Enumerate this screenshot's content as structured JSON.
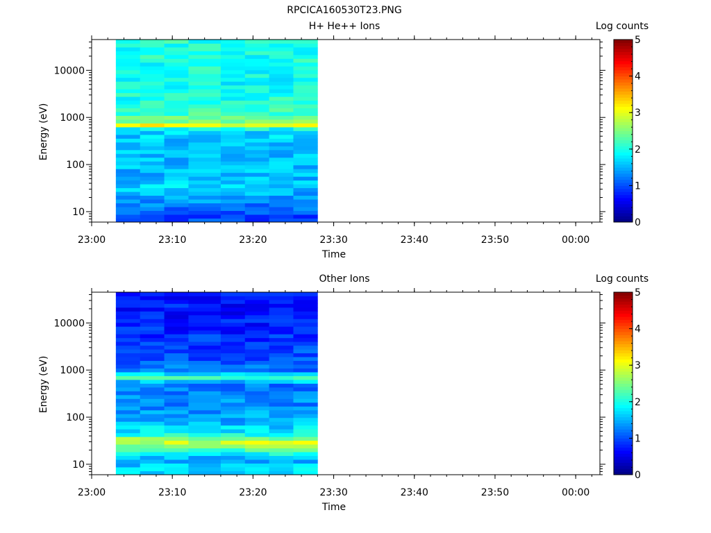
{
  "figure": {
    "title": "RPCICA160530T23.PNG"
  },
  "chart_data": [
    {
      "type": "heatmap",
      "title": "H+ He++ Ions",
      "xlabel": "Time",
      "ylabel": "Energy (eV)",
      "y_scale": "log",
      "x_ticks": [
        "23:00",
        "23:10",
        "23:20",
        "23:30",
        "23:40",
        "23:50",
        "00:00"
      ],
      "y_ticks": [
        "10",
        "100",
        "1000",
        "10000"
      ],
      "x_range": [
        "23:00",
        "00:03"
      ],
      "y_range_ev": [
        6,
        45000
      ],
      "data_time_range": [
        "23:03",
        "23:28"
      ],
      "colorbar": {
        "label": "Log counts",
        "ticks": [
          "0",
          "1",
          "2",
          "3",
          "4",
          "5"
        ],
        "range": [
          0,
          5
        ]
      },
      "time_bins": [
        "23:03",
        "23:06",
        "23:09",
        "23:12",
        "23:16",
        "23:19",
        "23:22",
        "23:25"
      ],
      "energy_profile": [
        {
          "energy_ev": 8,
          "log_counts": 1.0
        },
        {
          "energy_ev": 12,
          "log_counts": 1.2
        },
        {
          "energy_ev": 20,
          "log_counts": 1.4
        },
        {
          "energy_ev": 35,
          "log_counts": 1.7
        },
        {
          "energy_ev": 60,
          "log_counts": 1.5
        },
        {
          "energy_ev": 120,
          "log_counts": 1.55
        },
        {
          "energy_ev": 300,
          "log_counts": 1.6
        },
        {
          "energy_ev": 550,
          "log_counts": 1.7
        },
        {
          "energy_ev": 680,
          "log_counts": 3.1
        },
        {
          "energy_ev": 850,
          "log_counts": 2.4
        },
        {
          "energy_ev": 1500,
          "log_counts": 2.1
        },
        {
          "energy_ev": 5000,
          "log_counts": 1.9
        },
        {
          "energy_ev": 20000,
          "log_counts": 2.0
        },
        {
          "energy_ev": 40000,
          "log_counts": 2.05
        }
      ]
    },
    {
      "type": "heatmap",
      "title": "Other Ions",
      "xlabel": "Time",
      "ylabel": "Energy (eV)",
      "y_scale": "log",
      "x_ticks": [
        "23:00",
        "23:10",
        "23:20",
        "23:30",
        "23:40",
        "23:50",
        "00:00"
      ],
      "y_ticks": [
        "10",
        "100",
        "1000",
        "10000"
      ],
      "x_range": [
        "23:00",
        "00:03"
      ],
      "y_range_ev": [
        6,
        45000
      ],
      "data_time_range": [
        "23:03",
        "23:28"
      ],
      "colorbar": {
        "label": "Log counts",
        "ticks": [
          "0",
          "1",
          "2",
          "3",
          "4",
          "5"
        ],
        "range": [
          0,
          5
        ]
      },
      "time_bins": [
        "23:03",
        "23:06",
        "23:09",
        "23:12",
        "23:16",
        "23:19",
        "23:22",
        "23:25"
      ],
      "energy_profile": [
        {
          "energy_ev": 8,
          "log_counts": 1.7
        },
        {
          "energy_ev": 13,
          "log_counts": 1.5
        },
        {
          "energy_ev": 20,
          "log_counts": 2.2
        },
        {
          "energy_ev": 30,
          "log_counts": 2.9
        },
        {
          "energy_ev": 45,
          "log_counts": 1.9
        },
        {
          "energy_ev": 80,
          "log_counts": 1.5
        },
        {
          "energy_ev": 200,
          "log_counts": 1.3
        },
        {
          "energy_ev": 500,
          "log_counts": 1.2
        },
        {
          "energy_ev": 700,
          "log_counts": 2.2
        },
        {
          "energy_ev": 1000,
          "log_counts": 1.2
        },
        {
          "energy_ev": 3000,
          "log_counts": 0.9
        },
        {
          "energy_ev": 10000,
          "log_counts": 0.75
        },
        {
          "energy_ev": 40000,
          "log_counts": 0.7
        }
      ]
    }
  ]
}
